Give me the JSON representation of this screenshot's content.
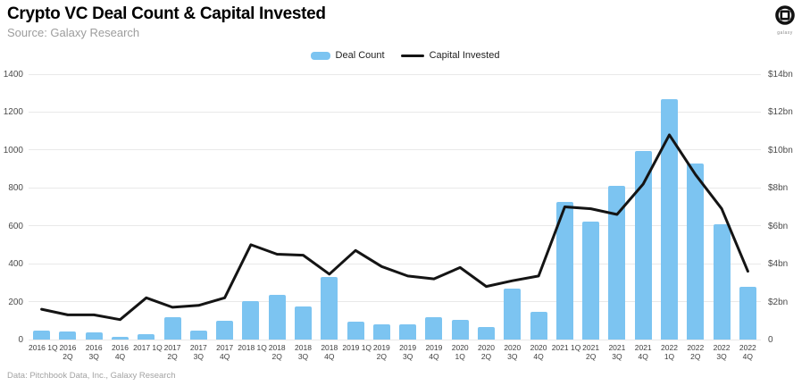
{
  "header": {
    "title": "Crypto VC Deal Count & Capital Invested",
    "source": "Source: Galaxy Research",
    "logo_text": "galaxy"
  },
  "legend": [
    {
      "label": "Deal Count",
      "type": "bar",
      "color": "#7cc4f1"
    },
    {
      "label": "Capital Invested",
      "type": "line",
      "color": "#141414"
    }
  ],
  "footer": {
    "credit": "Data: Pitchbook Data, Inc., Galaxy Research"
  },
  "colors": {
    "bar": "#7cc4f1",
    "line": "#141414",
    "grid": "#e9e9e9"
  },
  "chart_data": {
    "type": "bar",
    "subtype": "bar+line dual axis",
    "title": "Crypto VC Deal Count & Capital Invested",
    "grid": true,
    "legend_position": "top-center",
    "categories": [
      "2016 1Q",
      "2016 2Q",
      "2016 3Q",
      "2016 4Q",
      "2017 1Q",
      "2017 2Q",
      "2017 3Q",
      "2017 4Q",
      "2018 1Q",
      "2018 2Q",
      "2018 3Q",
      "2018 4Q",
      "2019 1Q",
      "2019 2Q",
      "2019 3Q",
      "2019 4Q",
      "2020 1Q",
      "2020 2Q",
      "2020 3Q",
      "2020 4Q",
      "2021 1Q",
      "2021 2Q",
      "2021 3Q",
      "2021 4Q",
      "2022 1Q",
      "2022 2Q",
      "2022 3Q",
      "2022 4Q"
    ],
    "x_tick_lines": [
      [
        "2016 1Q"
      ],
      [
        "2016",
        "2Q"
      ],
      [
        "2016",
        "3Q"
      ],
      [
        "2016",
        "4Q"
      ],
      [
        "2017 1Q"
      ],
      [
        "2017",
        "2Q"
      ],
      [
        "2017",
        "3Q"
      ],
      [
        "2017",
        "4Q"
      ],
      [
        "2018 1Q"
      ],
      [
        "2018",
        "2Q"
      ],
      [
        "2018",
        "3Q"
      ],
      [
        "2018",
        "4Q"
      ],
      [
        "2019 1Q"
      ],
      [
        "2019",
        "2Q"
      ],
      [
        "2019",
        "3Q"
      ],
      [
        "2019",
        "4Q"
      ],
      [
        "2020",
        "1Q"
      ],
      [
        "2020",
        "2Q"
      ],
      [
        "2020",
        "3Q"
      ],
      [
        "2020",
        "4Q"
      ],
      [
        "2021 1Q"
      ],
      [
        "2021",
        "2Q"
      ],
      [
        "2021",
        "3Q"
      ],
      [
        "2021",
        "4Q"
      ],
      [
        "2022",
        "1Q"
      ],
      [
        "2022",
        "2Q"
      ],
      [
        "2022",
        "3Q"
      ],
      [
        "2022",
        "4Q"
      ]
    ],
    "series": [
      {
        "name": "Deal Count",
        "type": "bar",
        "axis": "left",
        "color": "#7cc4f1",
        "values": [
          45,
          43,
          36,
          12,
          30,
          120,
          45,
          100,
          205,
          237,
          176,
          332,
          96,
          78,
          80,
          117,
          106,
          65,
          267,
          145,
          725,
          620,
          810,
          994,
          1270,
          930,
          609,
          279
        ]
      },
      {
        "name": "Capital Invested",
        "type": "line",
        "axis": "right",
        "color": "#141414",
        "unit": "$bn",
        "values": [
          1.6,
          1.3,
          1.3,
          1.05,
          2.2,
          1.7,
          1.8,
          2.2,
          5.0,
          4.5,
          4.45,
          3.45,
          4.7,
          3.85,
          3.35,
          3.2,
          3.8,
          2.8,
          3.1,
          3.35,
          7.0,
          6.9,
          6.6,
          8.2,
          10.8,
          8.7,
          6.9,
          3.6
        ]
      }
    ],
    "left_axis": {
      "label": "Deal Count",
      "ticks": [
        0,
        200,
        400,
        600,
        800,
        1000,
        1200,
        1400
      ],
      "min": 0,
      "max": 1400
    },
    "right_axis": {
      "label": "Capital Invested",
      "tick_labels": [
        "0",
        "$2bn",
        "$4bn",
        "$6bn",
        "$8bn",
        "$10bn",
        "$12bn",
        "$14bn"
      ],
      "min": 0,
      "max_bn": 14
    }
  }
}
